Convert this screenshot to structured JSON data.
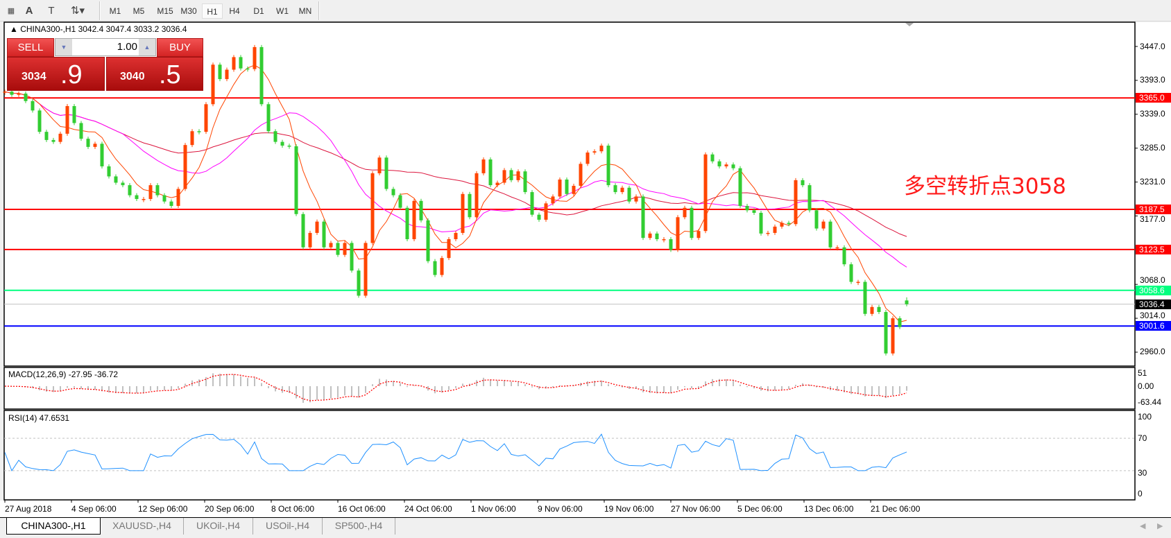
{
  "toolbar": {
    "icons": [
      "grid-f-icon",
      "text-a-icon",
      "text-box-icon",
      "arrows-dropdown-icon"
    ],
    "timeframes": [
      "M1",
      "M5",
      "M15",
      "M30",
      "H1",
      "H4",
      "D1",
      "W1",
      "MN"
    ],
    "selected_timeframe": "H1"
  },
  "chart": {
    "title": "CHINA300-,H1  3042.4 3047.4 3033.2 3036.4",
    "annotation": "多空转折点3058",
    "colors": {
      "bull_candle": "#ff4500",
      "bear_candle": "#32cd32",
      "ma_fast": "#ff4500",
      "ma_mid": "#ff00ff",
      "ma_slow": "#dc143c"
    }
  },
  "trade_panel": {
    "sell_label": "SELL",
    "buy_label": "BUY",
    "lot": "1.00",
    "sell_price_main": "3034",
    "sell_price_big": ".9",
    "buy_price_main": "3040",
    "buy_price_big": ".5"
  },
  "chart_data": {
    "type": "candlestick",
    "price_axis_ticks": [
      "3447.0",
      "3393.0",
      "3339.0",
      "3285.0",
      "3231.0",
      "3177.0",
      "3068.0",
      "3014.0",
      "2960.0"
    ],
    "time_axis_ticks": [
      "27 Aug 2018",
      "4 Sep 06:00",
      "12 Sep 06:00",
      "20 Sep 06:00",
      "8 Oct 06:00",
      "16 Oct 06:00",
      "24 Oct 06:00",
      "1 Nov 06:00",
      "9 Nov 06:00",
      "19 Nov 06:00",
      "27 Nov 06:00",
      "5 Dec 06:00",
      "13 Dec 06:00",
      "21 Dec 06:00"
    ],
    "closes": [
      3375,
      3370,
      3372,
      3360,
      3345,
      3311,
      3298,
      3295,
      3308,
      3352,
      3325,
      3300,
      3287,
      3292,
      3256,
      3240,
      3230,
      3226,
      3210,
      3204,
      3204,
      3226,
      3210,
      3200,
      3193,
      3220,
      3290,
      3312,
      3311,
      3355,
      3418,
      3395,
      3410,
      3430,
      3412,
      3411,
      3446,
      3355,
      3312,
      3295,
      3289,
      3288,
      3180,
      3127,
      3150,
      3168,
      3127,
      3134,
      3115,
      3134,
      3090,
      3050,
      3134,
      3245,
      3270,
      3220,
      3210,
      3190,
      3140,
      3201,
      3170,
      3105,
      3083,
      3110,
      3140,
      3150,
      3212,
      3175,
      3245,
      3267,
      3226,
      3230,
      3250,
      3234,
      3248,
      3215,
      3179,
      3171,
      3197,
      3208,
      3235,
      3212,
      3225,
      3260,
      3278,
      3280,
      3289,
      3226,
      3215,
      3222,
      3200,
      3208,
      3142,
      3149,
      3140,
      3140,
      3123,
      3175,
      3190,
      3142,
      3153,
      3275,
      3264,
      3256,
      3259,
      3253,
      3193,
      3186,
      3182,
      3149,
      3150,
      3160,
      3166,
      3164,
      3234,
      3226,
      3186,
      3157,
      3168,
      3127,
      3127,
      3100,
      3072,
      3072,
      3021,
      3032,
      3024,
      2958,
      3014,
      3000
    ],
    "last_candle": {
      "open": 3042.4,
      "high": 3047.4,
      "low": 3033.2,
      "close": 3036.4
    },
    "levels": [
      {
        "value": 3365.0,
        "label": "3365.0",
        "color": "#ff0000"
      },
      {
        "value": 3187.5,
        "label": "3187.5",
        "color": "#ff0000"
      },
      {
        "value": 3123.5,
        "label": "3123.5",
        "color": "#ff0000"
      },
      {
        "value": 3058.6,
        "label": "3058.6",
        "color": "#00ff7f"
      },
      {
        "value": 3036.4,
        "label": "3036.4",
        "color": "#c0c0c0",
        "label_bg": "#000000"
      },
      {
        "value": 3001.6,
        "label": "3001.6",
        "color": "#0000ff"
      }
    ],
    "macd": {
      "title": "MACD(12,26,9) -27.95 -36.72",
      "ticks": [
        "51",
        "0.00",
        "-63.44"
      ]
    },
    "rsi": {
      "title": "RSI(14) 47.6531",
      "ticks": [
        "100",
        "70",
        "30",
        "0"
      ],
      "levels": [
        70,
        30
      ]
    }
  },
  "tabs": [
    "CHINA300-,H1",
    "XAUUSD-,H4",
    "UKOil-,H4",
    "USOil-,H4",
    "SP500-,H4"
  ],
  "active_tab": "CHINA300-,H1"
}
